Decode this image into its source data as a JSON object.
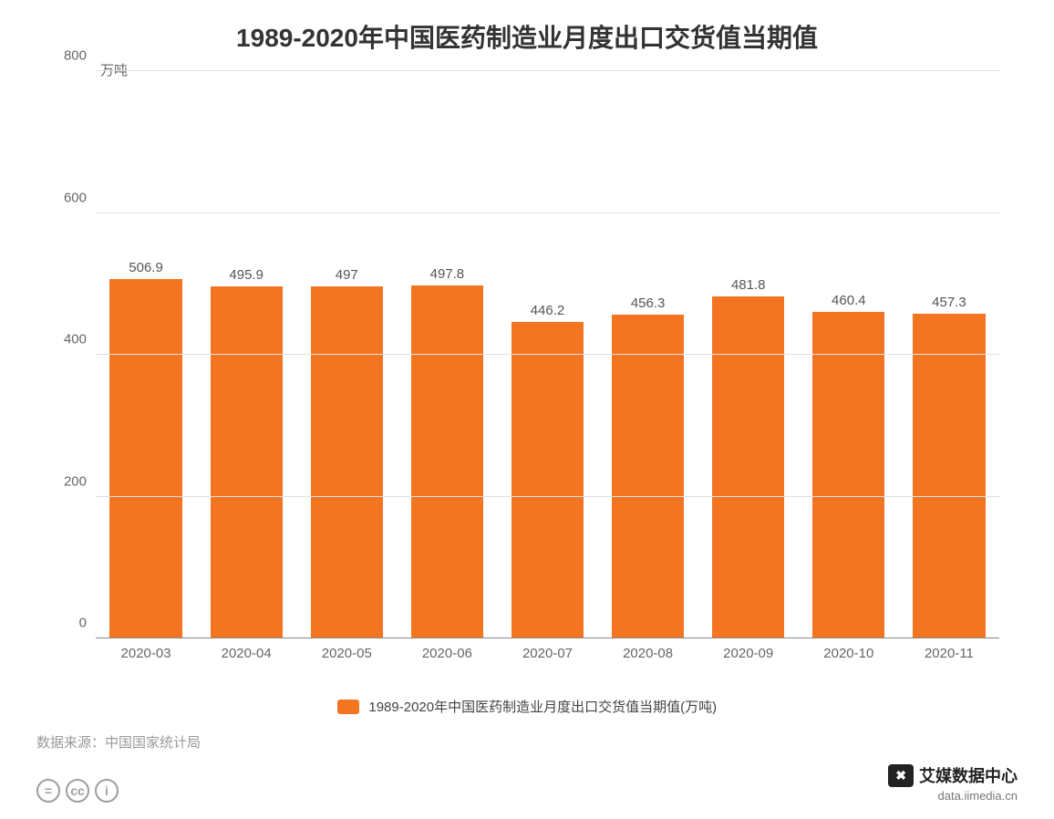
{
  "chart": {
    "type": "bar",
    "title": "1989-2020年中国医药制造业月度出口交货值当期值",
    "title_fontsize": 28,
    "y_unit": "万吨",
    "categories": [
      "2020-03",
      "2020-04",
      "2020-05",
      "2020-06",
      "2020-07",
      "2020-08",
      "2020-09",
      "2020-10",
      "2020-11"
    ],
    "values": [
      506.9,
      495.9,
      497,
      497.8,
      446.2,
      456.3,
      481.8,
      460.4,
      457.3
    ],
    "value_labels": [
      "506.9",
      "495.9",
      "497",
      "497.8",
      "446.2",
      "456.3",
      "481.8",
      "460.4",
      "457.3"
    ],
    "bar_color": "#f37421",
    "ylim": [
      0,
      800
    ],
    "yticks": [
      0,
      200,
      400,
      600,
      800
    ],
    "ytick_labels": [
      "0",
      "200",
      "400",
      "600",
      "800"
    ],
    "grid_color": "#e0e0e0",
    "axis_color": "#888888",
    "background_color": "#ffffff",
    "bar_width": 0.72,
    "label_fontsize": 15,
    "tick_fontsize": 15,
    "value_label_fontsize": 15,
    "legend": {
      "label": "1989-2020年中国医药制造业月度出口交货值当期值(万吨)",
      "swatch_color": "#f37421",
      "fontsize": 15
    }
  },
  "source": {
    "text": "数据来源：中国国家统计局",
    "fontsize": 15,
    "color": "#999999"
  },
  "footer": {
    "cc_icons": [
      "=",
      "cc",
      "ⓘ"
    ],
    "cc_icon_glyphs": [
      "=",
      "cc",
      "i"
    ],
    "brand_name": "艾媒数据中心",
    "brand_url": "data.iimedia.cn",
    "brand_badge_glyph": "✖",
    "brand_fontsize": 18
  }
}
